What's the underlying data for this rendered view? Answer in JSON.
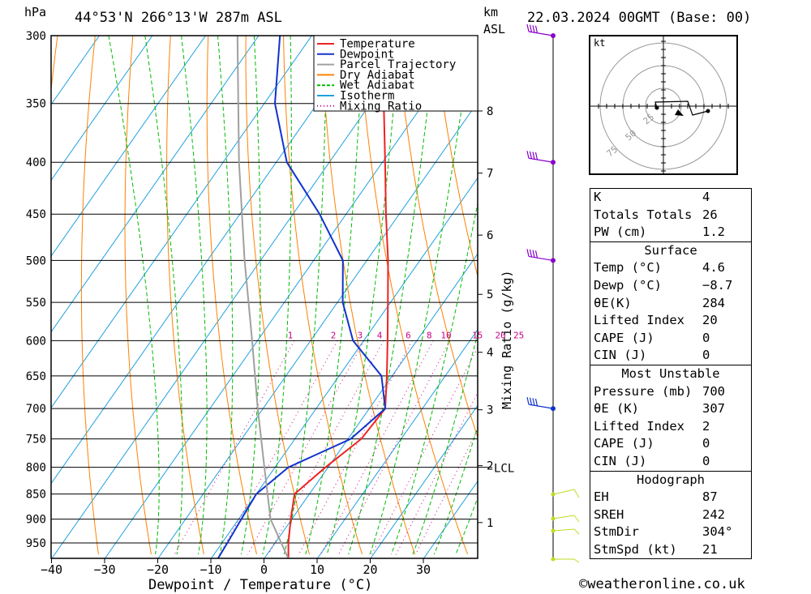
{
  "header": {
    "pressure_unit": "hPa",
    "location": "44°53'N 266°13'W 287m ASL",
    "km_label": "km",
    "asl_label": "ASL",
    "datetime": "22.03.2024 00GMT (Base: 00)"
  },
  "footer": {
    "x_axis_title": "Dewpoint / Temperature (°C)",
    "watermark": "©weatheronline.co.uk"
  },
  "colors": {
    "temperature": "#ee2222",
    "dewpoint": "#1133cc",
    "parcel": "#a0a0a0",
    "dry_adiabat": "#ff8000",
    "wet_adiabat": "#00bb00",
    "isotherm": "#20a0e0",
    "mixing_ratio": "#cc0088",
    "wind_barb": "#8800cc",
    "wind_barb_low": "#bbdd22"
  },
  "chart_data": {
    "type": "skew-t",
    "title": "44°53'N 266°13'W 287m ASL",
    "xlabel": "Dewpoint / Temperature (°C)",
    "ylabel": "hPa",
    "y_scale": "log-pressure",
    "pressure_ticks": [
      300,
      350,
      400,
      450,
      500,
      550,
      600,
      650,
      700,
      750,
      800,
      850,
      900,
      950
    ],
    "temp_ticks": [
      -40,
      -30,
      -20,
      -10,
      0,
      10,
      20,
      30
    ],
    "km_ticks": [
      {
        "label": "1",
        "p": 907
      },
      {
        "label": "2",
        "p": 797
      },
      {
        "label": "3",
        "p": 702
      },
      {
        "label": "4",
        "p": 616
      },
      {
        "label": "5",
        "p": 540
      },
      {
        "label": "6",
        "p": 472
      },
      {
        "label": "7",
        "p": 410
      },
      {
        "label": "8",
        "p": 356
      }
    ],
    "lcl": {
      "label": "LCL",
      "p": 800
    },
    "mixing_ratio_labels": [
      "1",
      "2",
      "3",
      "4",
      "6",
      "8",
      "10",
      "15",
      "20",
      "25"
    ],
    "mixing_ratio_axis_label": "Mixing Ratio (g/kg)",
    "legend": {
      "position": "top-center",
      "entries": [
        "Temperature",
        "Dewpoint",
        "Parcel Trajectory",
        "Dry Adiabat",
        "Wet Adiabat",
        "Isotherm",
        "Mixing Ratio"
      ]
    },
    "series": [
      {
        "name": "Temperature",
        "points": [
          [
            985,
            4.6
          ],
          [
            950,
            2.5
          ],
          [
            900,
            -0.2
          ],
          [
            850,
            -2.8
          ],
          [
            800,
            -0.5
          ],
          [
            750,
            2.5
          ],
          [
            700,
            3.0
          ],
          [
            650,
            -1.0
          ],
          [
            600,
            -5.5
          ],
          [
            550,
            -10.5
          ],
          [
            500,
            -16.0
          ],
          [
            450,
            -22.5
          ],
          [
            400,
            -29.5
          ],
          [
            350,
            -37.5
          ],
          [
            300,
            -47.5
          ]
        ]
      },
      {
        "name": "Dewpoint",
        "points": [
          [
            985,
            -8.7
          ],
          [
            950,
            -9.0
          ],
          [
            900,
            -9.5
          ],
          [
            850,
            -10.0
          ],
          [
            800,
            -7.5
          ],
          [
            750,
            0.5
          ],
          [
            700,
            3.0
          ],
          [
            650,
            -2.0
          ],
          [
            600,
            -12.0
          ],
          [
            550,
            -19.0
          ],
          [
            500,
            -24.5
          ],
          [
            450,
            -35.0
          ],
          [
            400,
            -48.0
          ],
          [
            350,
            -58.0
          ],
          [
            300,
            -66.0
          ]
        ]
      },
      {
        "name": "Parcel Trajectory",
        "points": [
          [
            985,
            4.6
          ],
          [
            900,
            -4.0
          ],
          [
            800,
            -12.0
          ],
          [
            700,
            -21.0
          ],
          [
            600,
            -31.0
          ],
          [
            500,
            -43.0
          ],
          [
            400,
            -57.0
          ],
          [
            300,
            -74.0
          ]
        ]
      }
    ],
    "wind_barbs_hPa": [
      300,
      400,
      500,
      700
    ],
    "hodograph": {
      "unit": "kt",
      "ring_labels": [
        "25",
        "50",
        "75"
      ]
    },
    "indices": {
      "K": "4",
      "Totals Totals": "26",
      "PW (cm)": "1.2"
    },
    "surface": {
      "Temp (°C)": "4.6",
      "Dewp (°C)": "-8.7",
      "θE(K)": "284",
      "Lifted Index": "20",
      "CAPE (J)": "0",
      "CIN (J)": "0"
    },
    "most_unstable": {
      "Pressure (mb)": "700",
      "θE (K)": "307",
      "Lifted Index": "2",
      "CAPE (J)": "0",
      "CIN (J)": "0"
    },
    "hodograph_params": {
      "EH": "87",
      "SREH": "242",
      "StmDir": "304°",
      "StmSpd (kt)": "21"
    }
  },
  "info_table": {
    "top": [
      {
        "k": "K",
        "v": "4"
      },
      {
        "k": "Totals Totals",
        "v": "26"
      },
      {
        "k": "PW (cm)",
        "v": "1.2"
      }
    ],
    "surface_title": "Surface",
    "surface": [
      {
        "k": "Temp (°C)",
        "v": "4.6"
      },
      {
        "k": "Dewp (°C)",
        "v": "-8.7"
      },
      {
        "k": "θE(K)",
        "v": "284"
      },
      {
        "k": "Lifted Index",
        "v": "20"
      },
      {
        "k": "CAPE (J)",
        "v": "0"
      },
      {
        "k": "CIN (J)",
        "v": "0"
      }
    ],
    "mu_title": "Most Unstable",
    "mu": [
      {
        "k": "Pressure (mb)",
        "v": "700"
      },
      {
        "k": "θE (K)",
        "v": "307"
      },
      {
        "k": "Lifted Index",
        "v": "2"
      },
      {
        "k": "CAPE (J)",
        "v": "0"
      },
      {
        "k": "CIN (J)",
        "v": "0"
      }
    ],
    "hodo_title": "Hodograph",
    "hodo": [
      {
        "k": "EH",
        "v": "87"
      },
      {
        "k": "SREH",
        "v": "242"
      },
      {
        "k": "StmDir",
        "v": "304°"
      },
      {
        "k": "StmSpd (kt)",
        "v": "21"
      }
    ]
  }
}
